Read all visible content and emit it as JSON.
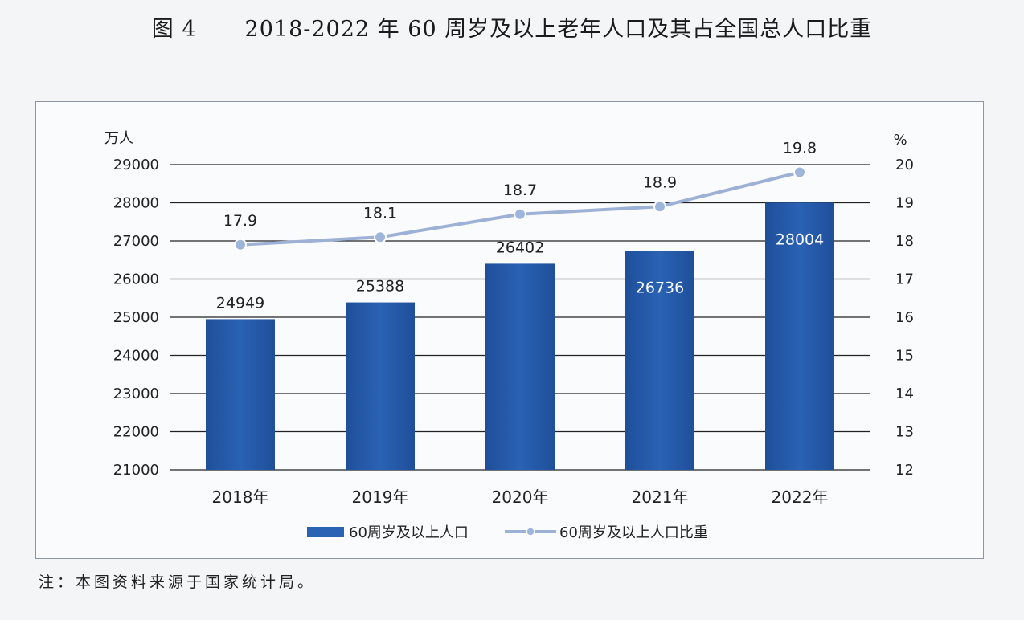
{
  "figure": {
    "number": "图 4",
    "title": "2018-2022 年 60 周岁及以上老年人口及其占全国总人口比重"
  },
  "note": "注：本图资料来源于国家统计局。",
  "colors": {
    "bar": "#2a62b4",
    "bar_dark": "#1f4f9a",
    "line": "#9db1d6",
    "marker": "#9fb6dc",
    "grid": "#222222",
    "text": "#222222"
  },
  "chart_data": {
    "type": "bar+line",
    "categories": [
      "2018年",
      "2019年",
      "2020年",
      "2021年",
      "2022年"
    ],
    "series": [
      {
        "name": "60周岁及以上人口",
        "type": "bar",
        "axis": "left",
        "values": [
          24949,
          25388,
          26402,
          26736,
          28004
        ],
        "labels": [
          "24949",
          "25388",
          "26402",
          "26736",
          "28004"
        ]
      },
      {
        "name": "60周岁及以上人口比重",
        "type": "line",
        "axis": "right",
        "values": [
          17.9,
          18.1,
          18.7,
          18.9,
          19.8
        ],
        "labels": [
          "17.9",
          "18.1",
          "18.7",
          "18.9",
          "19.8"
        ]
      }
    ],
    "y_left": {
      "unit": "万人",
      "range": [
        21000,
        29000
      ],
      "ticks": [
        "29000",
        "28000",
        "27000",
        "26000",
        "25000",
        "24000",
        "23000",
        "22000",
        "21000"
      ]
    },
    "y_right": {
      "unit": "%",
      "range": [
        12,
        20
      ],
      "ticks": [
        "20",
        "19",
        "18",
        "17",
        "16",
        "15",
        "14",
        "13",
        "12"
      ]
    },
    "gridlines": true,
    "legend_position": "bottom-center"
  }
}
